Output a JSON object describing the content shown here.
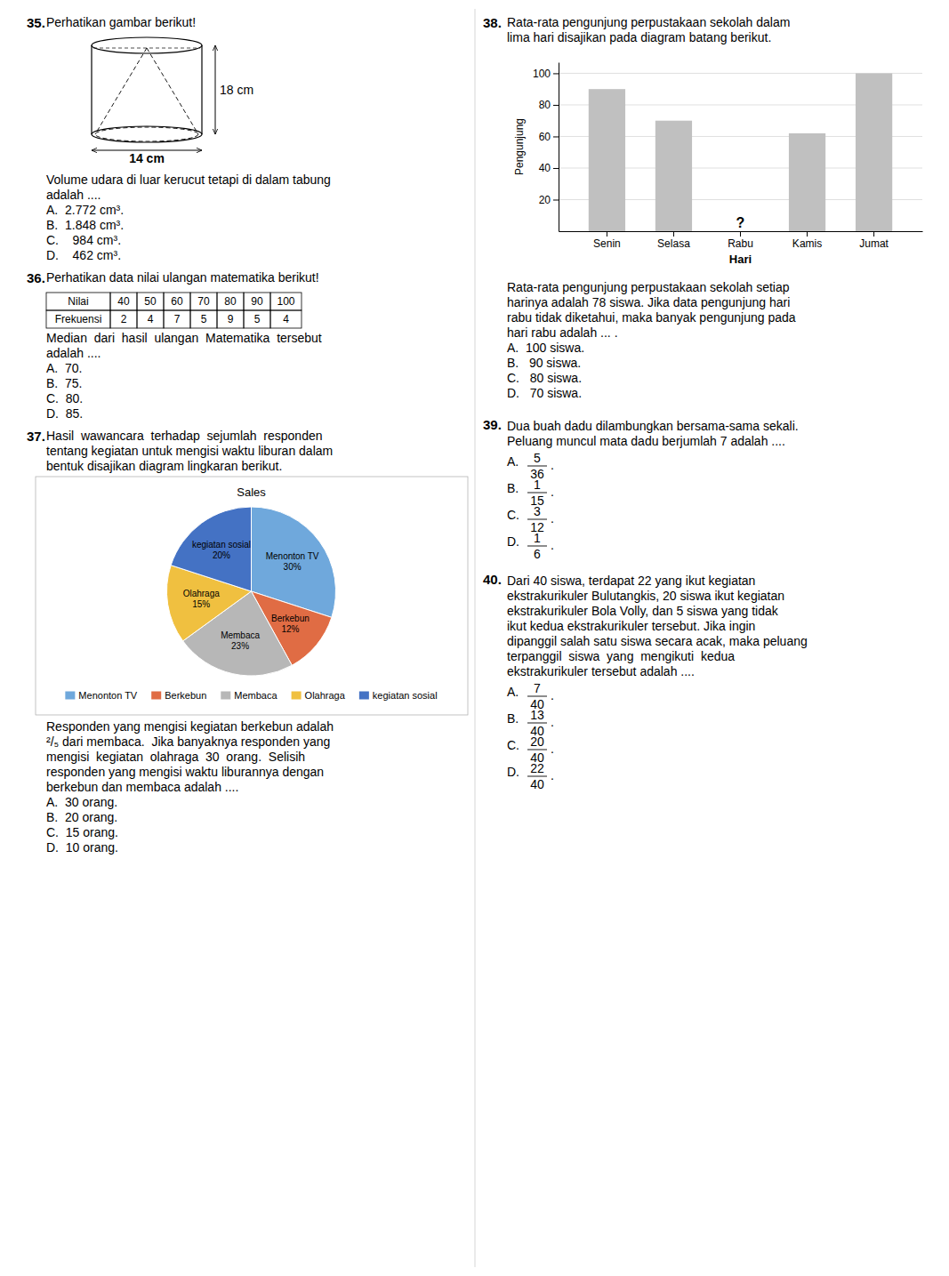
{
  "chart_data": [
    {
      "type": "pie",
      "title": "Sales",
      "categories": [
        "Menonton TV",
        "Berkebun",
        "Membaca",
        "Olahraga",
        "kegiatan sosial"
      ],
      "values": [
        30,
        12,
        23,
        15,
        20
      ],
      "value_labels": [
        "30%",
        "12%",
        "23%",
        "15%",
        "20%"
      ],
      "colors": [
        "#6fa8dc",
        "#e06c44",
        "#b7b7b7",
        "#f0c040",
        "#4472c4"
      ],
      "data_labels": true,
      "legend": "bottom"
    },
    {
      "type": "bar",
      "categories": [
        "Senin",
        "Selasa",
        "Rabu",
        "Kamis",
        "Jumat"
      ],
      "values": [
        90,
        70,
        0,
        62,
        100
      ],
      "color": "#c0c0c0",
      "xlabel": "Hari",
      "ylabel": "Pengunjung",
      "ylim": [
        0,
        107
      ],
      "yticks": [
        20,
        40,
        60,
        80,
        100
      ],
      "grid": true,
      "annotations": [
        {
          "text": "?",
          "x": "Rabu"
        }
      ]
    }
  ],
  "page": {
    "q35": {
      "number": "35.",
      "header": "Perhatikan gambar berikut!",
      "dimensions": [
        "18 cm",
        "14 cm"
      ],
      "question_lines": [
        "Volume udara di luar kerucut tetapi di dalam tabung",
        "adalah ...."
      ],
      "options": [
        "A.  2.772 cm³.",
        "B.  1.848 cm³.",
        "C.    984 cm³.",
        "D.    462 cm³."
      ]
    },
    "q36": {
      "number": "36.",
      "header": "Perhatikan data nilai ulangan matematika berikut!",
      "table": [
        [
          "Nilai",
          "40",
          "50",
          "60",
          "70",
          "80",
          "90",
          "100"
        ],
        [
          "Frekuensi",
          "2",
          "4",
          "7",
          "5",
          "9",
          "5",
          "4"
        ]
      ],
      "question_lines": [
        "Median  dari  hasil  ulangan  Matematika  tersebut",
        "adalah ...."
      ],
      "options": [
        "A.  70.",
        "B.  75.",
        "C.  80.",
        "D.  85."
      ]
    },
    "q37": {
      "number": "37.",
      "header_lines": [
        "Hasil  wawancara  terhadap  sejumlah  responden",
        "tentang kegiatan untuk mengisi waktu liburan dalam",
        "bentuk disajikan diagram lingkaran berikut."
      ],
      "question_lines": [
        "Responden yang mengisi kegiatan berkebun adalah",
        "²/₅ dari membaca.  Jika banyaknya responden yang",
        "mengisi  kegiatan  olahraga  30  orang.  Selisih",
        "responden yang mengisi waktu liburannya dengan",
        "berkebun dan membaca adalah ...."
      ],
      "options": [
        "A.  30 orang.",
        "B.  20 orang.",
        "C.  15 orang.",
        "D.  10 orang."
      ]
    },
    "q38": {
      "number": "38.",
      "header_lines": [
        "Rata-rata pengunjung perpustakaan sekolah dalam",
        "lima hari disajikan pada diagram batang berikut."
      ],
      "question_lines": [
        "Rata-rata pengunjung perpustakaan sekolah setiap",
        "harinya adalah 78 siswa. Jika data pengunjung hari",
        "rabu tidak diketahui, maka banyak pengunjung pada",
        "hari rabu adalah ... ."
      ],
      "options": [
        "A.  100 siswa.",
        "B.   90 siswa.",
        "C.   80 siswa.",
        "D.   70 siswa."
      ]
    },
    "q39": {
      "number": "39.",
      "question_lines": [
        "Dua buah dadu dilambungkan bersama-sama sekali.",
        "Peluang muncul mata dadu berjumlah 7 adalah ...."
      ],
      "options": [
        {
          "letter": "A.",
          "num": "5",
          "den": "36"
        },
        {
          "letter": "B.",
          "num": "1",
          "den": "15"
        },
        {
          "letter": "C.",
          "num": "3",
          "den": "12"
        },
        {
          "letter": "D.",
          "num": "1",
          "den": "6"
        }
      ]
    },
    "q40": {
      "number": "40.",
      "question_lines": [
        "Dari 40 siswa, terdapat 22 yang ikut kegiatan",
        "ekstrakurikuler Bulutangkis, 20 siswa ikut kegiatan",
        "ekstrakurikuler Bola Volly, dan 5 siswa yang tidak",
        "ikut kedua ekstrakurikuler tersebut. Jika ingin",
        "dipanggil salah satu siswa secara acak, maka peluang",
        "terpanggil  siswa  yang  mengikuti  kedua",
        "ekstrakurikuler tersebut adalah ...."
      ],
      "options": [
        {
          "letter": "A.",
          "num": "7",
          "den": "40"
        },
        {
          "letter": "B.",
          "num": "13",
          "den": "40"
        },
        {
          "letter": "C.",
          "num": "20",
          "den": "40"
        },
        {
          "letter": "D.",
          "num": "22",
          "den": "40"
        }
      ]
    },
    "fraction_suffix": "."
  }
}
